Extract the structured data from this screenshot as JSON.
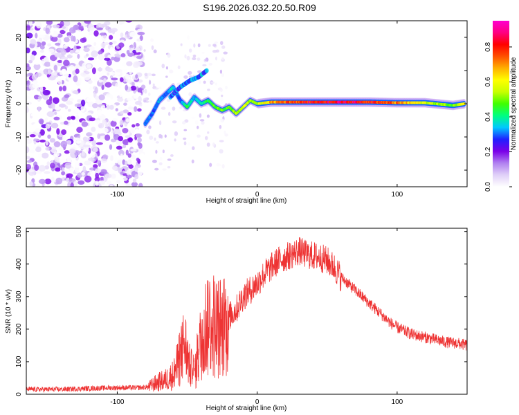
{
  "title": "S196.2026.032.20.50.R09",
  "chart_data": [
    {
      "type": "heatmap",
      "xlabel": "Height of straight line (km)",
      "ylabel": "Frequency (Hz)",
      "xlim": [
        -165,
        150
      ],
      "ylim": [
        -25,
        25
      ],
      "xticks": [
        "-100",
        "0",
        "100"
      ],
      "xtick_values": [
        -100,
        0,
        100
      ],
      "yticks": [
        "-20",
        "-10",
        "0",
        "10",
        "20"
      ],
      "ytick_values": [
        -20,
        -10,
        0,
        10,
        20
      ],
      "colorbar": {
        "label": "Normalized spectral amplitude",
        "range": [
          0,
          0.95
        ],
        "ticks": [
          "0.0",
          "0.2",
          "0.4",
          "0.6",
          "0.8"
        ],
        "tick_values": [
          0,
          0.2,
          0.4,
          0.6,
          0.8
        ],
        "colors": [
          "#ffffff",
          "#e0d0f8",
          "#b080f0",
          "#7a00e8",
          "#2020ff",
          "#00c8ff",
          "#00ff80",
          "#40ff00",
          "#c8ff00",
          "#ffff00",
          "#ffb000",
          "#ff5000",
          "#ff0000",
          "#ff0080",
          "#ff00d0"
        ]
      },
      "ridge": {
        "x": [
          -80,
          -75,
          -70,
          -65,
          -60,
          -55,
          -50,
          -45,
          -40,
          -35,
          -30,
          -25,
          -20,
          -15,
          -10,
          -5,
          0,
          10,
          20,
          40,
          60,
          80,
          100,
          120,
          140,
          148
        ],
        "frequency": [
          -6,
          -3,
          1,
          3,
          5,
          1,
          -1,
          2,
          0,
          1,
          -1,
          -2,
          -1,
          -3,
          -1,
          1,
          0,
          0.5,
          0.5,
          0.5,
          0.5,
          0.5,
          0.3,
          0.3,
          -0.5,
          0
        ],
        "amplitude": [
          0.35,
          0.3,
          0.35,
          0.3,
          0.4,
          0.3,
          0.45,
          0.35,
          0.4,
          0.45,
          0.5,
          0.5,
          0.5,
          0.55,
          0.6,
          0.55,
          0.55,
          0.7,
          0.8,
          0.85,
          0.9,
          0.85,
          0.75,
          0.6,
          0.5,
          0.7
        ]
      },
      "upper_branch": {
        "x": [
          -62,
          -55,
          -48,
          -42,
          -36
        ],
        "frequency": [
          2,
          5,
          7,
          8,
          10
        ]
      },
      "noise_region": [
        -165,
        -82
      ]
    },
    {
      "type": "line",
      "xlabel": "Height of straight line (km)",
      "ylabel": "SNR (10 * v/v)",
      "xlim": [
        -165,
        150
      ],
      "ylim": [
        0,
        510
      ],
      "xticks": [
        "-100",
        "0",
        "100"
      ],
      "xtick_values": [
        -100,
        0,
        100
      ],
      "yticks": [
        "0",
        "100",
        "200",
        "300",
        "400",
        "500"
      ],
      "ytick_values": [
        0,
        100,
        200,
        300,
        400,
        500
      ],
      "series": [
        {
          "name": "SNR",
          "color": "#ee3333",
          "x": [
            -165,
            -140,
            -120,
            -100,
            -85,
            -78,
            -72,
            -65,
            -60,
            -55,
            -52,
            -48,
            -44,
            -40,
            -35,
            -30,
            -25,
            -20,
            -15,
            -10,
            -5,
            0,
            5,
            10,
            15,
            20,
            25,
            30,
            35,
            40,
            45,
            50,
            55,
            60,
            65,
            70,
            75,
            80,
            85,
            90,
            95,
            100,
            105,
            110,
            115,
            120,
            125,
            130,
            135,
            140,
            145,
            150
          ],
          "y": [
            15,
            15,
            18,
            20,
            20,
            22,
            35,
            45,
            60,
            110,
            160,
            80,
            70,
            170,
            230,
            210,
            200,
            240,
            260,
            300,
            320,
            340,
            370,
            390,
            410,
            420,
            430,
            440,
            430,
            425,
            420,
            410,
            390,
            360,
            340,
            320,
            300,
            280,
            260,
            240,
            220,
            205,
            195,
            185,
            180,
            175,
            170,
            165,
            160,
            158,
            155,
            150
          ]
        }
      ]
    }
  ]
}
